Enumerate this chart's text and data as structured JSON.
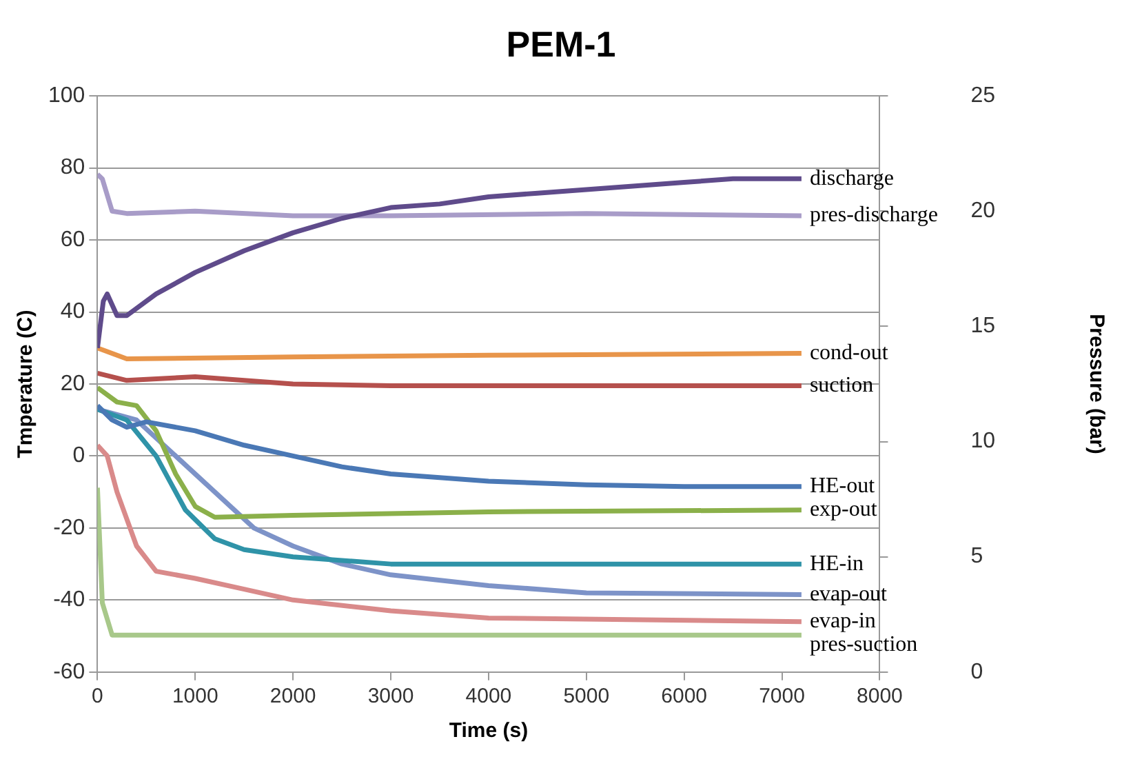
{
  "chart_data": {
    "type": "line",
    "title": "PEM-1",
    "xlabel": "Time (s)",
    "ylabel": "Tmperature (C)",
    "y2label": "Pressure (bar)",
    "xlim": [
      0,
      8000
    ],
    "xticks": [
      0,
      1000,
      2000,
      3000,
      4000,
      5000,
      6000,
      7000,
      8000
    ],
    "ylim": [
      -60,
      100
    ],
    "yticks": [
      -60,
      -40,
      -20,
      0,
      20,
      40,
      60,
      80,
      100
    ],
    "y2lim": [
      0,
      25
    ],
    "y2ticks": [
      0,
      5,
      10,
      15,
      20,
      25
    ],
    "grid": "y",
    "legend": false,
    "marker": "none",
    "line_style": "solid",
    "series": [
      {
        "name": "discharge",
        "color": "#5f4b8b",
        "x": [
          0,
          60,
          100,
          200,
          300,
          600,
          1000,
          1500,
          2000,
          2500,
          3000,
          3500,
          4000,
          4500,
          5000,
          5500,
          6000,
          6500,
          7000,
          7200
        ],
        "values": [
          30,
          43,
          45,
          39,
          39,
          45,
          51,
          57,
          62,
          66,
          69,
          70,
          72,
          73,
          74,
          75,
          76,
          77,
          77,
          77
        ]
      },
      {
        "name": "pres-discharge",
        "color": "#a89cc8",
        "axis": "y2",
        "x": [
          0,
          50,
          150,
          300,
          1000,
          2000,
          3000,
          5000,
          7200
        ],
        "values": [
          21.6,
          21.4,
          20.0,
          19.9,
          20.0,
          19.8,
          19.8,
          19.9,
          19.8
        ]
      },
      {
        "name": "cond-out",
        "color": "#e8954a",
        "x": [
          0,
          300,
          2000,
          4000,
          7200
        ],
        "values": [
          30,
          27,
          27.5,
          28,
          28.5
        ]
      },
      {
        "name": "suction",
        "color": "#b5504d",
        "x": [
          0,
          300,
          1000,
          2000,
          3000,
          7200
        ],
        "values": [
          23,
          21,
          22,
          20,
          19.5,
          19.5
        ]
      },
      {
        "name": "HE-out",
        "color": "#4a78b5",
        "x": [
          0,
          150,
          300,
          500,
          1000,
          1500,
          2000,
          2500,
          3000,
          4000,
          5000,
          6000,
          7200
        ],
        "values": [
          14,
          10,
          8,
          9.5,
          7,
          3,
          0,
          -3,
          -5,
          -7,
          -8,
          -8.5,
          -8.5
        ]
      },
      {
        "name": "exp-out",
        "color": "#8bb04a",
        "x": [
          0,
          200,
          400,
          600,
          800,
          1000,
          1200,
          2000,
          4000,
          7200
        ],
        "values": [
          19,
          15,
          14,
          7,
          -5,
          -14,
          -17,
          -16.5,
          -15.5,
          -15
        ]
      },
      {
        "name": "HE-in",
        "color": "#2f93a8",
        "x": [
          0,
          300,
          600,
          900,
          1200,
          1500,
          2000,
          3000,
          7200
        ],
        "values": [
          13,
          10,
          0,
          -15,
          -23,
          -26,
          -28,
          -30,
          -30
        ]
      },
      {
        "name": "evap-out",
        "color": "#7d93c8",
        "x": [
          0,
          400,
          800,
          1200,
          1600,
          2000,
          2500,
          3000,
          4000,
          5000,
          7200
        ],
        "values": [
          13,
          10,
          0,
          -10,
          -20,
          -25,
          -30,
          -33,
          -36,
          -38,
          -38.5
        ]
      },
      {
        "name": "evap-in",
        "color": "#d98a8a",
        "x": [
          0,
          100,
          200,
          400,
          600,
          1000,
          1500,
          2000,
          3000,
          4000,
          7200
        ],
        "values": [
          3,
          0,
          -10,
          -25,
          -32,
          -34,
          -37,
          -40,
          -43,
          -45,
          -46
        ]
      },
      {
        "name": "pres-suction",
        "color": "#a8c88a",
        "axis": "y2",
        "x": [
          0,
          50,
          150,
          7200
        ],
        "values": [
          8,
          3,
          1.6,
          1.6
        ]
      }
    ]
  }
}
